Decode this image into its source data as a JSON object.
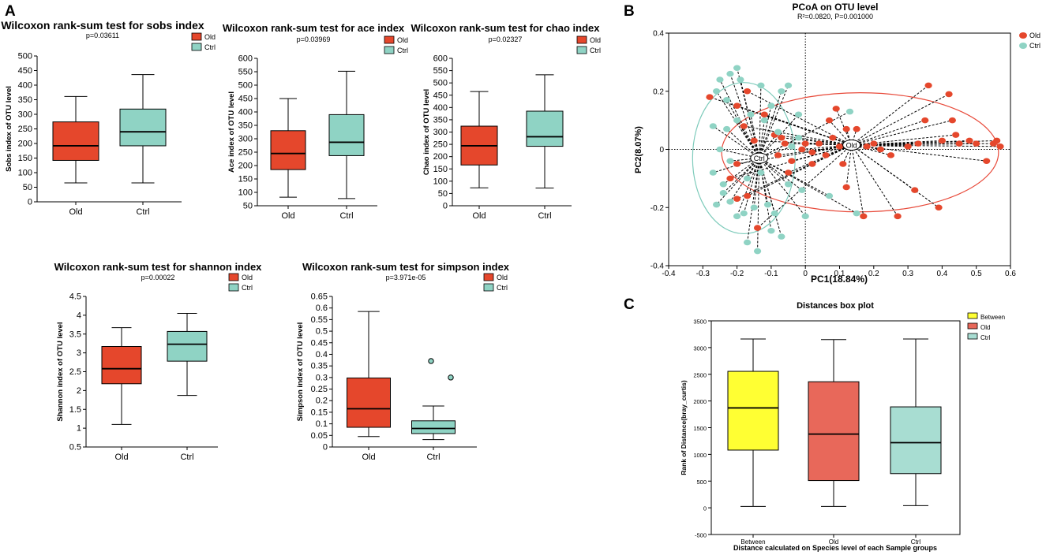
{
  "panel_labels": [
    "A",
    "B",
    "C"
  ],
  "colors": {
    "old": "#e5472c",
    "ctrl": "#8fd3c4",
    "between": "#ffff33",
    "old_c": "#e8685a",
    "ctrl_c": "#a8ddd2",
    "old_ellipse": "#e84a3a",
    "ctrl_ellipse": "#7ecbbb"
  },
  "chart_data": [
    {
      "type": "box",
      "title": "Wilcoxon rank-sum test for sobs index",
      "subtitle": "p=0.03611",
      "ylabel": "Sobs index of OTU level",
      "ylim": [
        0,
        500
      ],
      "yticks": [
        "0",
        "50",
        "100",
        "150",
        "200",
        "250",
        "300",
        "350",
        "400",
        "450",
        "500"
      ],
      "categories": [
        "Old",
        "Ctrl"
      ],
      "legend": [
        "Old",
        "Ctrl"
      ],
      "boxes": [
        {
          "name": "Old",
          "min": 65,
          "q1": 142,
          "median": 192,
          "q3": 274,
          "max": 361
        },
        {
          "name": "Ctrl",
          "min": 65,
          "q1": 192,
          "median": 240,
          "q3": 318,
          "max": 436
        }
      ]
    },
    {
      "type": "box",
      "title": "Wilcoxon rank-sum test for ace index",
      "subtitle": "p=0.03969",
      "ylabel": "Ace index of OTU level",
      "ylim": [
        50,
        600
      ],
      "yticks": [
        "50",
        "100",
        "150",
        "200",
        "250",
        "300",
        "350",
        "400",
        "450",
        "500",
        "550",
        "600"
      ],
      "categories": [
        "Old",
        "Ctrl"
      ],
      "legend": [
        "Old",
        "Ctrl"
      ],
      "boxes": [
        {
          "name": "Old",
          "min": 82,
          "q1": 185,
          "median": 245,
          "q3": 330,
          "max": 450
        },
        {
          "name": "Ctrl",
          "min": 77,
          "q1": 237,
          "median": 287,
          "q3": 390,
          "max": 552
        }
      ]
    },
    {
      "type": "box",
      "title": "Wilcoxon rank-sum test for chao index",
      "subtitle": "p=0.02327",
      "ylabel": "Chao index of OTU level",
      "ylim": [
        0,
        600
      ],
      "yticks": [
        "0",
        "50",
        "100",
        "150",
        "200",
        "250",
        "300",
        "350",
        "400",
        "450",
        "500",
        "550",
        "600"
      ],
      "categories": [
        "Old",
        "Ctrl"
      ],
      "legend": [
        "Old",
        "Ctrl"
      ],
      "boxes": [
        {
          "name": "Old",
          "min": 73,
          "q1": 166,
          "median": 244,
          "q3": 324,
          "max": 465
        },
        {
          "name": "Ctrl",
          "min": 72,
          "q1": 242,
          "median": 281,
          "q3": 385,
          "max": 533
        }
      ]
    },
    {
      "type": "box",
      "title": "Wilcoxon rank-sum test for shannon index",
      "subtitle": "p=0.00022",
      "ylabel": "Shannon index of OTU level",
      "ylim": [
        0.5,
        4.5
      ],
      "yticks": [
        "0.5",
        "1",
        "1.5",
        "2",
        "2.5",
        "3",
        "3.5",
        "4",
        "4.5"
      ],
      "categories": [
        "Old",
        "Ctrl"
      ],
      "legend": [
        "Old",
        "Ctrl"
      ],
      "boxes": [
        {
          "name": "Old",
          "min": 1.1,
          "q1": 2.18,
          "median": 2.58,
          "q3": 3.17,
          "max": 3.67
        },
        {
          "name": "Ctrl",
          "min": 1.87,
          "q1": 2.78,
          "median": 3.23,
          "q3": 3.57,
          "max": 4.05
        }
      ]
    },
    {
      "type": "box",
      "title": "Wilcoxon rank-sum test for simpson index",
      "subtitle": "p=3.971e-05",
      "ylabel": "Simpson index of OTU level",
      "ylim": [
        0,
        0.65
      ],
      "yticks": [
        "0",
        "0.05",
        "0.1",
        "0.15",
        "0.2",
        "0.25",
        "0.3",
        "0.35",
        "0.4",
        "0.45",
        "0.5",
        "0.55",
        "0.6",
        "0.65"
      ],
      "categories": [
        "Old",
        "Ctrl"
      ],
      "legend": [
        "Old",
        "Ctrl"
      ],
      "boxes": [
        {
          "name": "Old",
          "min": 0.045,
          "q1": 0.085,
          "median": 0.165,
          "q3": 0.298,
          "max": 0.585
        },
        {
          "name": "Ctrl",
          "min": 0.032,
          "q1": 0.058,
          "median": 0.08,
          "q3": 0.113,
          "max": 0.177,
          "outliers": [
            0.371,
            0.3
          ]
        }
      ]
    },
    {
      "type": "scatter",
      "title": "PCoA on OTU level",
      "subtitle": "R²=0.0820, P=0.001000",
      "xlabel": "PC1(18.84%)",
      "ylabel": "PC2(8.07%)",
      "xlim": [
        -0.4,
        0.6
      ],
      "ylim": [
        -0.4,
        0.4
      ],
      "xticks": [
        "-0.4",
        "-0.3",
        "-0.2",
        "-0.1",
        "0",
        "0.1",
        "0.2",
        "0.3",
        "0.4",
        "0.5",
        "0.6"
      ],
      "yticks": [
        "0.4",
        "0.2",
        "0",
        "-0.2",
        "-0.4"
      ],
      "legend": [
        "Old",
        "Ctrl"
      ],
      "centroids": [
        {
          "name": "Old",
          "x": 0.135,
          "y": 0.015
        },
        {
          "name": "Ctrl",
          "x": -0.135,
          "y": -0.03
        }
      ],
      "ellipses": [
        {
          "name": "Old",
          "cx": 0.16,
          "cy": -0.01,
          "rx": 0.405,
          "ry": 0.205
        },
        {
          "name": "Ctrl",
          "cx": -0.18,
          "cy": -0.03,
          "rx": 0.15,
          "ry": 0.26
        }
      ],
      "series": [
        {
          "name": "Old",
          "points": [
            [
              -0.17,
              0.2
            ],
            [
              -0.2,
              0.15
            ],
            [
              -0.18,
              0.08
            ],
            [
              -0.12,
              0.12
            ],
            [
              -0.15,
              0.03
            ],
            [
              -0.09,
              0.05
            ],
            [
              -0.06,
              0.02
            ],
            [
              -0.01,
              0.0
            ],
            [
              0.0,
              0.02
            ],
            [
              0.02,
              -0.01
            ],
            [
              0.04,
              0.02
            ],
            [
              0.06,
              -0.02
            ],
            [
              -0.2,
              -0.05
            ],
            [
              -0.22,
              -0.1
            ],
            [
              -0.17,
              -0.16
            ],
            [
              -0.14,
              -0.27
            ],
            [
              -0.2,
              -0.17
            ],
            [
              0.07,
              0.1
            ],
            [
              0.09,
              0.14
            ],
            [
              0.12,
              0.07
            ],
            [
              0.15,
              0.07
            ],
            [
              0.08,
              0.04
            ],
            [
              0.1,
              0.01
            ],
            [
              0.11,
              -0.05
            ],
            [
              0.18,
              0.01
            ],
            [
              0.2,
              0.02
            ],
            [
              0.22,
              0.0
            ],
            [
              0.25,
              -0.02
            ],
            [
              0.3,
              0.01
            ],
            [
              0.33,
              0.02
            ],
            [
              0.35,
              0.1
            ],
            [
              0.36,
              0.22
            ],
            [
              0.42,
              0.19
            ],
            [
              0.43,
              0.1
            ],
            [
              0.44,
              0.05
            ],
            [
              0.4,
              0.03
            ],
            [
              0.45,
              0.02
            ],
            [
              0.48,
              0.03
            ],
            [
              0.5,
              0.02
            ],
            [
              0.55,
              0.02
            ],
            [
              0.56,
              0.03
            ],
            [
              0.57,
              0.01
            ],
            [
              0.53,
              -0.04
            ],
            [
              0.39,
              -0.2
            ],
            [
              0.32,
              -0.14
            ],
            [
              0.27,
              -0.23
            ],
            [
              0.17,
              -0.23
            ],
            [
              0.12,
              -0.13
            ],
            [
              0.02,
              -0.05
            ],
            [
              -0.04,
              -0.04
            ],
            [
              -0.28,
              0.18
            ],
            [
              -0.08,
              -0.02
            ],
            [
              -0.07,
              0.04
            ],
            [
              -0.05,
              -0.08
            ]
          ]
        },
        {
          "name": "Ctrl",
          "points": [
            [
              -0.25,
              0.24
            ],
            [
              -0.22,
              0.26
            ],
            [
              -0.2,
              0.28
            ],
            [
              -0.19,
              0.24
            ],
            [
              -0.23,
              0.17
            ],
            [
              -0.26,
              0.2
            ],
            [
              -0.13,
              0.22
            ],
            [
              -0.1,
              0.15
            ],
            [
              -0.07,
              0.2
            ],
            [
              -0.05,
              0.22
            ],
            [
              -0.27,
              0.08
            ],
            [
              -0.23,
              0.07
            ],
            [
              -0.2,
              0.1
            ],
            [
              -0.16,
              0.12
            ],
            [
              -0.12,
              0.1
            ],
            [
              -0.08,
              0.06
            ],
            [
              -0.02,
              0.12
            ],
            [
              -0.25,
              0.0
            ],
            [
              -0.22,
              -0.04
            ],
            [
              -0.27,
              -0.08
            ],
            [
              -0.24,
              -0.12
            ],
            [
              -0.22,
              -0.18
            ],
            [
              -0.26,
              -0.19
            ],
            [
              -0.2,
              -0.23
            ],
            [
              -0.18,
              -0.22
            ],
            [
              -0.15,
              -0.2
            ],
            [
              -0.11,
              -0.19
            ],
            [
              -0.09,
              -0.22
            ],
            [
              -0.07,
              -0.3
            ],
            [
              -0.1,
              -0.28
            ],
            [
              -0.17,
              -0.32
            ],
            [
              -0.14,
              -0.35
            ],
            [
              0.0,
              -0.23
            ],
            [
              0.07,
              -0.16
            ],
            [
              0.15,
              -0.22
            ],
            [
              -0.01,
              -0.14
            ],
            [
              -0.05,
              -0.12
            ],
            [
              -0.13,
              -0.08
            ],
            [
              -0.17,
              -0.1
            ],
            [
              -0.24,
              -0.15
            ],
            [
              0.13,
              0.13
            ],
            [
              -0.04,
              0.01
            ],
            [
              -0.02,
              0.04
            ]
          ]
        }
      ]
    },
    {
      "type": "box",
      "title": "Distances box plot",
      "xlabel": "Distance calculated on Species level of each Sample groups",
      "ylabel": "Rank of Distance(bray_curtis)",
      "ylim": [
        -500,
        3500
      ],
      "yticks": [
        "-500",
        "0",
        "500",
        "1000",
        "1500",
        "2000",
        "2500",
        "3000",
        "3500"
      ],
      "categories": [
        "Between",
        "Old",
        "Ctrl"
      ],
      "legend": [
        "Between",
        "Old",
        "Ctrl"
      ],
      "boxes": [
        {
          "name": "Between",
          "min": 25,
          "q1": 1080,
          "median": 1870,
          "q3": 2555,
          "max": 3160
        },
        {
          "name": "Old",
          "min": 25,
          "q1": 510,
          "median": 1380,
          "q3": 2360,
          "max": 3150
        },
        {
          "name": "Ctrl",
          "min": 40,
          "q1": 640,
          "median": 1220,
          "q3": 1890,
          "max": 3160
        }
      ]
    }
  ]
}
